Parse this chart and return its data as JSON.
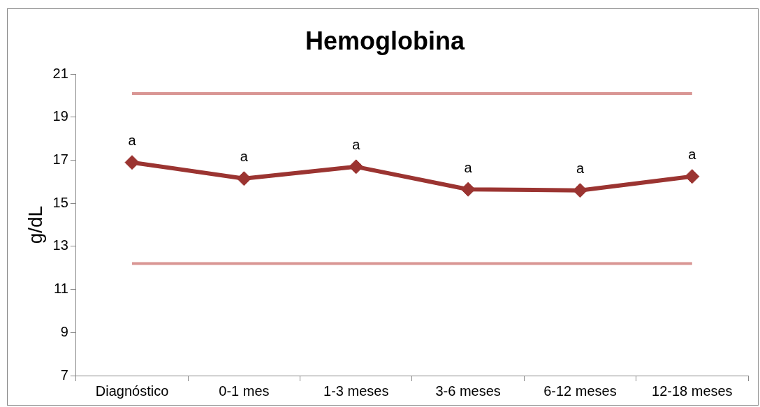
{
  "chart_data": {
    "type": "line",
    "title": "Hemoglobina",
    "ylabel": "g/dL",
    "categories": [
      "Diagnóstico",
      "0-1 mes",
      "1-3 meses",
      "3-6 meses",
      "6-12 meses",
      "12-18 meses"
    ],
    "series": [
      {
        "color": "#9b3431",
        "values": [
          16.9,
          16.15,
          16.7,
          15.65,
          15.6,
          16.25
        ]
      }
    ],
    "ylim": [
      7,
      21
    ],
    "yticks": [
      7,
      9,
      11,
      13,
      15,
      17,
      19,
      21
    ],
    "grid": false,
    "legend": false,
    "marker": "diamond",
    "line_style": "solid",
    "ref_lines": [
      {
        "axis": "y",
        "value": 20.1,
        "color": "#d99694"
      },
      {
        "axis": "y",
        "value": 12.2,
        "color": "#d99694"
      }
    ],
    "annotations": [
      {
        "text": "a",
        "x": "Diagnóstico",
        "y": 16.9
      },
      {
        "text": "a",
        "x": "0-1 mes",
        "y": 16.15
      },
      {
        "text": "a",
        "x": "1-3 meses",
        "y": 16.7
      },
      {
        "text": "a",
        "x": "3-6 meses",
        "y": 15.65
      },
      {
        "text": "a",
        "x": "6-12 meses",
        "y": 15.6
      },
      {
        "text": "a",
        "x": "12-18 meses",
        "y": 16.25
      }
    ]
  }
}
